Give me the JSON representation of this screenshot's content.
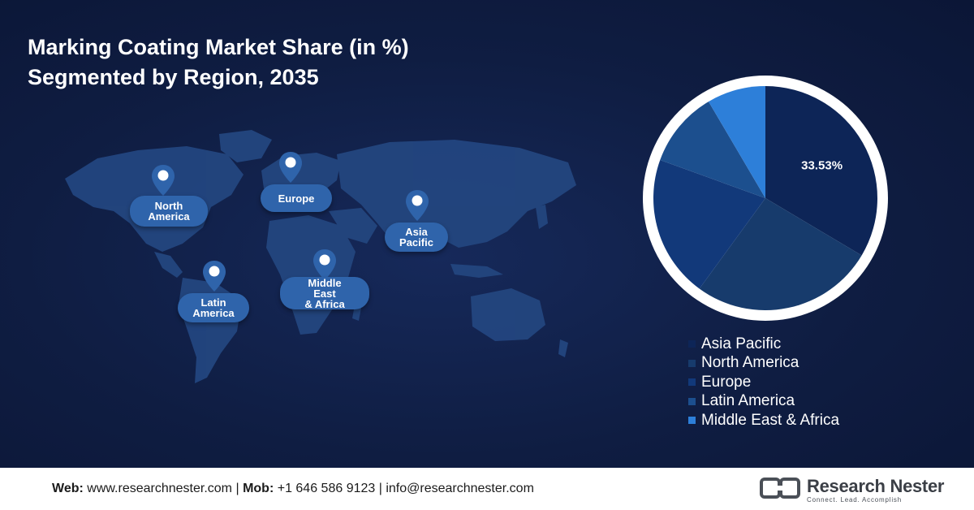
{
  "title": {
    "line1": "Marking Coating Market Share (in %)",
    "line2": "Segmented by Region, 2035"
  },
  "map": {
    "regions": [
      {
        "key": "north-america",
        "lines": [
          "North",
          "America"
        ]
      },
      {
        "key": "europe",
        "lines": [
          "Europe"
        ]
      },
      {
        "key": "asia-pacific",
        "lines": [
          "Asia",
          "Pacific"
        ]
      },
      {
        "key": "latin-america",
        "lines": [
          "Latin",
          "America"
        ]
      },
      {
        "key": "middle-east-africa",
        "lines": [
          "Middle",
          "East",
          "& Africa"
        ]
      }
    ]
  },
  "chart_data": {
    "type": "pie",
    "title": "Marking Coating Market Share (in %) Segmented by Region, 2035",
    "categories": [
      "Asia Pacific",
      "North America",
      "Europe",
      "Latin America",
      "Middle East & Africa"
    ],
    "values": [
      33.53,
      26.5,
      20.5,
      11.0,
      8.47
    ],
    "colors": [
      "#0d2557",
      "#173b6c",
      "#12397a",
      "#1c4f8e",
      "#2d7fd9"
    ],
    "data_labels": [
      {
        "category": "Asia Pacific",
        "text": "33.53%"
      }
    ],
    "legend_position": "bottom-right"
  },
  "footer": {
    "web_label": "Web:",
    "web_value": "www.researchnester.com",
    "mob_label": "Mob:",
    "mob_value": "+1 646 586 9123",
    "email": "info@researchnester.com",
    "separator": "|"
  },
  "brand": {
    "name": "Research Nester",
    "tagline": "Connect. Lead. Accomplish"
  }
}
